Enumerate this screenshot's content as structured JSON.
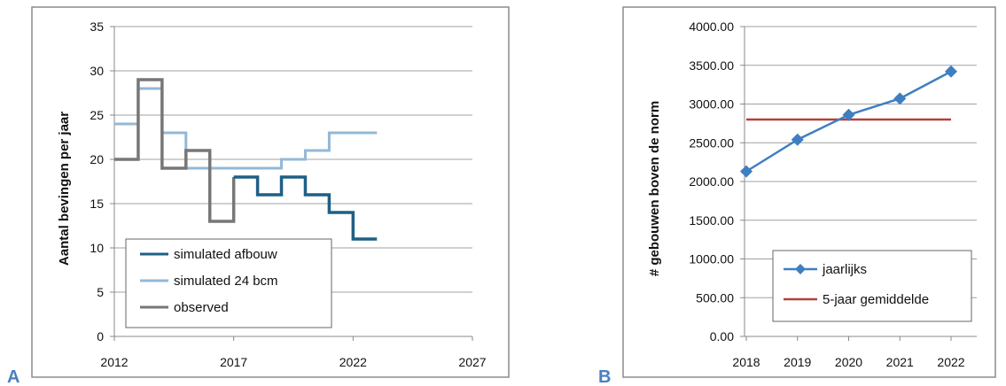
{
  "colors": {
    "dark_blue": "#1f5f86",
    "light_blue": "#93b8d6",
    "gray": "#777777",
    "series_blue": "#3f7fc0",
    "red": "#b3413a",
    "panel_letter": "#4a7fc1"
  },
  "chart_data": [
    {
      "panel_label": "A",
      "type": "line",
      "step": true,
      "title": "",
      "xlabel": "",
      "ylabel": "Aantal bevingen per jaar",
      "xlim": [
        2012,
        2027
      ],
      "ylim": [
        0,
        35
      ],
      "x_ticks": [
        "2012",
        "2017",
        "2022",
        "2027"
      ],
      "y_ticks": [
        "0",
        "5",
        "10",
        "15",
        "20",
        "25",
        "30",
        "35"
      ],
      "grid": true,
      "legend_position": "bottom-left",
      "series": [
        {
          "name": "simulated afbouw",
          "color": "#1f5f86",
          "x": [
            2017,
            2018,
            2019,
            2020,
            2021,
            2022,
            2023
          ],
          "y": [
            18,
            16,
            18,
            16,
            14,
            11,
            11
          ]
        },
        {
          "name": "simulated 24 bcm",
          "color": "#93b8d6",
          "x": [
            2012,
            2013,
            2014,
            2015,
            2016,
            2017,
            2018,
            2019,
            2020,
            2021,
            2022,
            2023
          ],
          "y": [
            24,
            28,
            23,
            19,
            19,
            19,
            19,
            20,
            21,
            23,
            23,
            23
          ]
        },
        {
          "name": "observed",
          "color": "#777777",
          "x": [
            2012,
            2013,
            2014,
            2015,
            2016,
            2017
          ],
          "y": [
            20,
            29,
            19,
            21,
            13,
            18
          ]
        }
      ]
    },
    {
      "panel_label": "B",
      "type": "line",
      "title": "",
      "xlabel": "",
      "ylabel": "# gebouwen boven de norm",
      "categories": [
        "2018",
        "2019",
        "2020",
        "2021",
        "2022"
      ],
      "ylim": [
        0,
        4000
      ],
      "y_ticks": [
        "0.00",
        "500.00",
        "1000.00",
        "1500.00",
        "2000.00",
        "2500.00",
        "3000.00",
        "3500.00",
        "4000.00"
      ],
      "grid": true,
      "legend_position": "bottom-right",
      "series": [
        {
          "name": "jaarlijks",
          "color": "#3f7fc0",
          "marker": "diamond",
          "values": [
            2130,
            2540,
            2860,
            3070,
            3420
          ]
        },
        {
          "name": "5-jaar gemiddelde",
          "color": "#b3413a",
          "values": [
            2800,
            2800,
            2800,
            2800,
            2800
          ]
        }
      ]
    }
  ]
}
